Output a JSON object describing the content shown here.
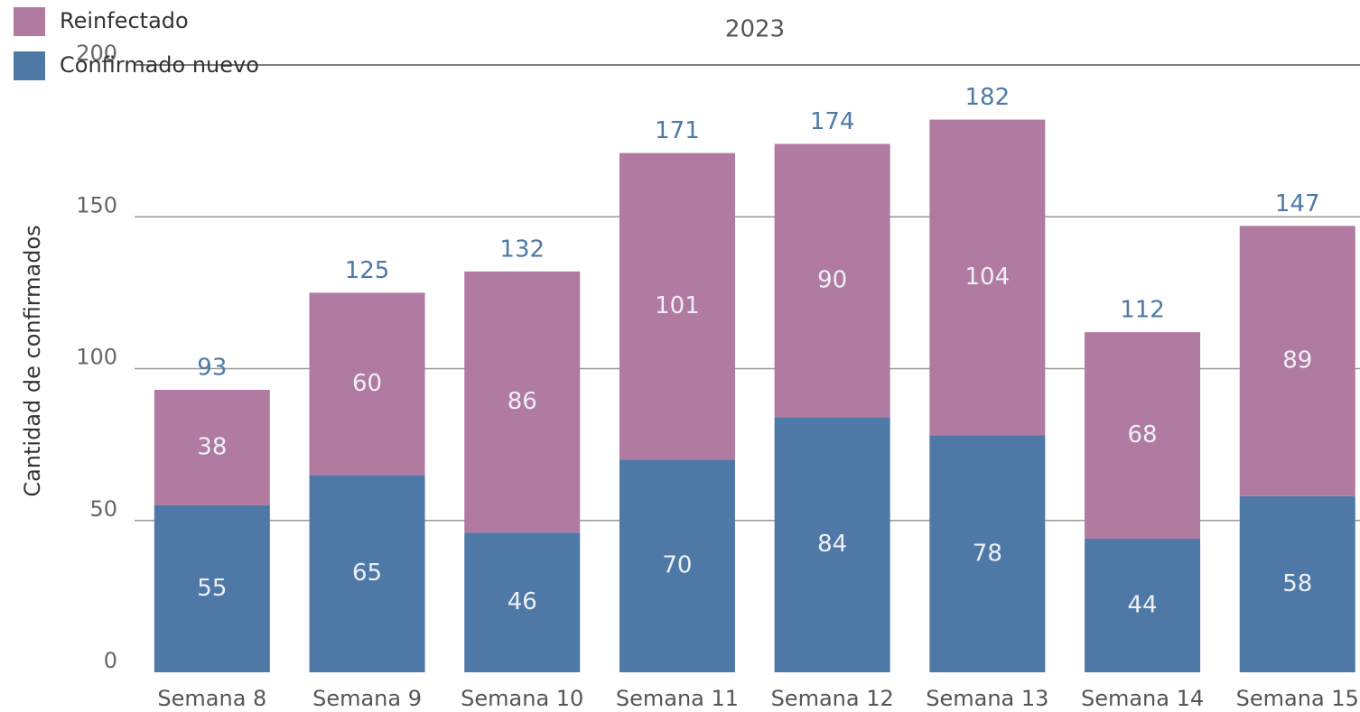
{
  "chart_data": {
    "type": "stacked_bar",
    "subtitle": "2023",
    "y_label": "Cantidad de confirmados",
    "categories": [
      "Semana 8",
      "Semana 9",
      "Semana 10",
      "Semana 11",
      "Semana 12",
      "Semana 13",
      "Semana 14",
      "Semana 15"
    ],
    "series": [
      {
        "name": "Confirmado nuevo",
        "color": "#4e79a7",
        "values": [
          55,
          65,
          46,
          70,
          84,
          78,
          44,
          58
        ]
      },
      {
        "name": "Reinfectado",
        "color": "#b07aa1",
        "values": [
          38,
          60,
          86,
          101,
          90,
          104,
          68,
          89
        ]
      }
    ],
    "totals": [
      93,
      125,
      132,
      171,
      174,
      182,
      112,
      147
    ],
    "ylim": [
      0,
      200
    ],
    "yticks": [
      0,
      50,
      100,
      150,
      200
    ],
    "grid": true,
    "legend": "top-left"
  }
}
